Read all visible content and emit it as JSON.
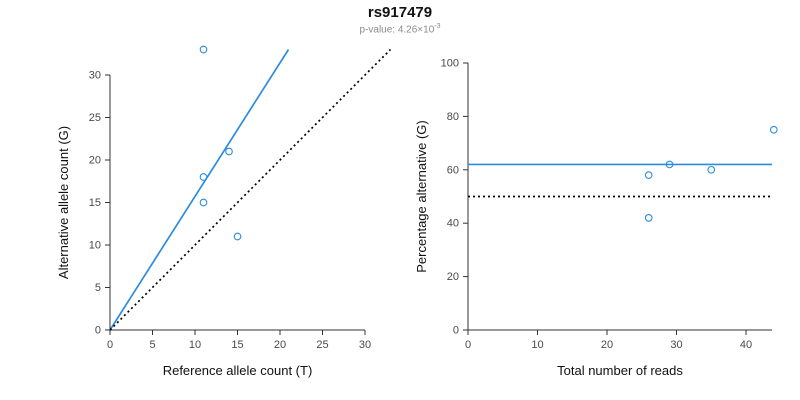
{
  "header": {
    "title": "rs917479",
    "subtitle_prefix": "p-value: 4.26×10",
    "subtitle_exponent": "-3"
  },
  "colors": {
    "accent": "#2b8cde",
    "dotted": "#000000",
    "axis": "#333333"
  },
  "chart_data": [
    {
      "type": "scatter",
      "title": "rs917479",
      "xlabel": "Reference allele count (T)",
      "ylabel": "Alternative allele count (G)",
      "xlim": [
        0,
        30
      ],
      "ylim": [
        0,
        30
      ],
      "xticks": [
        0,
        5,
        10,
        15,
        20,
        25,
        30
      ],
      "yticks": [
        0,
        5,
        10,
        15,
        20,
        25,
        30
      ],
      "grid": false,
      "points": [
        [
          11,
          33
        ],
        [
          11,
          18
        ],
        [
          11,
          15
        ],
        [
          14,
          21
        ],
        [
          15,
          11
        ]
      ],
      "lines": [
        {
          "name": "fit-line",
          "style": "solid",
          "color": "accent",
          "x1": 0,
          "y1": 0,
          "x2": 21,
          "y2": 33
        },
        {
          "name": "identity-line",
          "style": "dotted",
          "color": "black",
          "x1": 0,
          "y1": 0,
          "x2": 33,
          "y2": 33
        }
      ]
    },
    {
      "type": "scatter",
      "title": "",
      "xlabel": "Total number of reads",
      "ylabel": "Percentage alternative (G)",
      "xlim": [
        0,
        44
      ],
      "ylim": [
        0,
        100
      ],
      "xticks": [
        0,
        10,
        20,
        30,
        40
      ],
      "yticks": [
        0,
        20,
        40,
        60,
        80,
        100
      ],
      "grid": false,
      "points": [
        [
          26,
          58
        ],
        [
          26,
          42
        ],
        [
          29,
          62
        ],
        [
          35,
          60
        ],
        [
          44,
          75
        ]
      ],
      "lines": [
        {
          "name": "mean-percentage-line",
          "style": "solid",
          "color": "accent",
          "y": 62
        },
        {
          "name": "fifty-percent-reference-line",
          "style": "dotted",
          "color": "black",
          "y": 50
        }
      ]
    }
  ]
}
